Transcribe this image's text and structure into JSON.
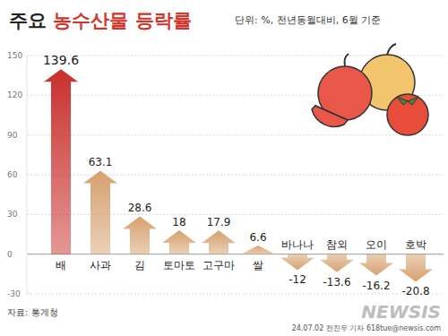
{
  "chart_data": {
    "type": "bar",
    "title": "주요 농수산물 등락률",
    "subtitle": "단위: %, 전년동월대비, 6월 기준",
    "categories": [
      "배",
      "사과",
      "김",
      "토마토",
      "고구마",
      "쌀",
      "바나나",
      "참외",
      "오이",
      "호박"
    ],
    "values": [
      139.6,
      63.1,
      28.6,
      18,
      17.9,
      6.6,
      -12,
      -13.6,
      -16.2,
      -20.8
    ],
    "colors": [
      "#c9302c",
      "#d6a06e",
      "#d6a06e",
      "#d6a06e",
      "#d6a06e",
      "#d6a06e",
      "#d6a06e",
      "#d6a06e",
      "#d6a06e",
      "#d6a06e"
    ],
    "ylim": [
      -30,
      150
    ],
    "yticks": [
      -30,
      0,
      30,
      60,
      90,
      120,
      150
    ],
    "grid": true,
    "data_labels": true,
    "source": "자료: 통계청",
    "annotations": [
      "24.07.02 전진우 기자 618tue@newsis.com",
      "NEWSIS"
    ]
  }
}
